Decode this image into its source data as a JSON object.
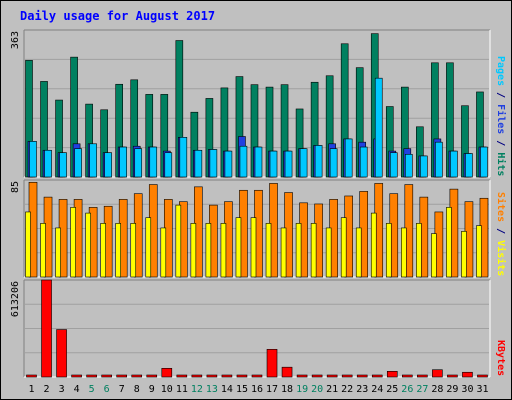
{
  "chart_data": {
    "type": "bar",
    "title": "Daily usage for August 2017",
    "categories": [
      "1",
      "2",
      "3",
      "4",
      "5",
      "6",
      "7",
      "8",
      "9",
      "10",
      "11",
      "12",
      "13",
      "14",
      "15",
      "16",
      "17",
      "18",
      "19",
      "20",
      "21",
      "22",
      "23",
      "24",
      "25",
      "26",
      "27",
      "28",
      "29",
      "30",
      "31"
    ],
    "weekend_days": [
      "5",
      "6",
      "12",
      "13",
      "19",
      "20",
      "26",
      "27"
    ],
    "panels": [
      {
        "id": "hits",
        "ymax_label": "363",
        "ymax": 363,
        "axis_label": {
          "pages": "Pages",
          "sep1": " / ",
          "files": "Files",
          "sep2": " / ",
          "hits": "Hits"
        },
        "series": [
          {
            "name": "Hits",
            "color": "#008060",
            "values": [
              288,
              236,
              190,
              296,
              180,
              166,
              229,
              240,
              204,
              204,
              337,
              160,
              194,
              220,
              248,
              228,
              222,
              228,
              168,
              234,
              250,
              329,
              270,
              354,
              174,
              222,
              124,
              282,
              282,
              176,
              210
            ]
          },
          {
            "name": "Files",
            "color": "#2040e0",
            "values": [
              88,
              66,
              60,
              82,
              82,
              60,
              74,
              76,
              74,
              64,
              98,
              66,
              68,
              64,
              100,
              74,
              64,
              64,
              70,
              78,
              82,
              94,
              86,
              94,
              64,
              70,
              52,
              94,
              64,
              58,
              74
            ]
          },
          {
            "name": "Pages",
            "color": "#00c8ff",
            "values": [
              88,
              66,
              60,
              70,
              82,
              60,
              74,
              70,
              74,
              60,
              98,
              66,
              68,
              64,
              76,
              74,
              64,
              64,
              70,
              78,
              70,
              94,
              74,
              244,
              60,
              56,
              52,
              86,
              64,
              58,
              74
            ]
          }
        ]
      },
      {
        "id": "visits",
        "ymax_label": "85",
        "ymax": 85,
        "axis_label": {
          "sites": "Sites",
          "sep": " / ",
          "visits": "Visits"
        },
        "series": [
          {
            "name": "Visits",
            "color": "#ff8000",
            "values": [
              83,
              70,
              68,
              68,
              61,
              62,
              68,
              73,
              81,
              68,
              66,
              79,
              63,
              66,
              76,
              76,
              82,
              74,
              65,
              64,
              68,
              71,
              75,
              82,
              73,
              81,
              70,
              57,
              77,
              66,
              69
            ]
          },
          {
            "name": "Sites",
            "color": "#ffff00",
            "values": [
              57,
              47,
              43,
              61,
              56,
              47,
              47,
              47,
              52,
              43,
              63,
              47,
              47,
              47,
              52,
              52,
              47,
              43,
              47,
              47,
              43,
              52,
              43,
              56,
              47,
              43,
              47,
              38,
              61,
              40,
              45
            ]
          }
        ]
      },
      {
        "id": "kbytes",
        "ymax_label": "613206",
        "ymax": 613206,
        "axis_label": {
          "kbytes": "KBytes"
        },
        "series": [
          {
            "name": "KBytes",
            "color": "#ff0000",
            "values": [
              6000,
              613206,
              300000,
              6000,
              6000,
              12000,
              6000,
              6000,
              6000,
              55000,
              6000,
              6000,
              6000,
              6000,
              6000,
              6000,
              175000,
              62000,
              6000,
              6000,
              6000,
              6000,
              6000,
              6000,
              36000,
              6000,
              6000,
              46000,
              6000,
              30000,
              6000
            ]
          }
        ]
      }
    ]
  }
}
